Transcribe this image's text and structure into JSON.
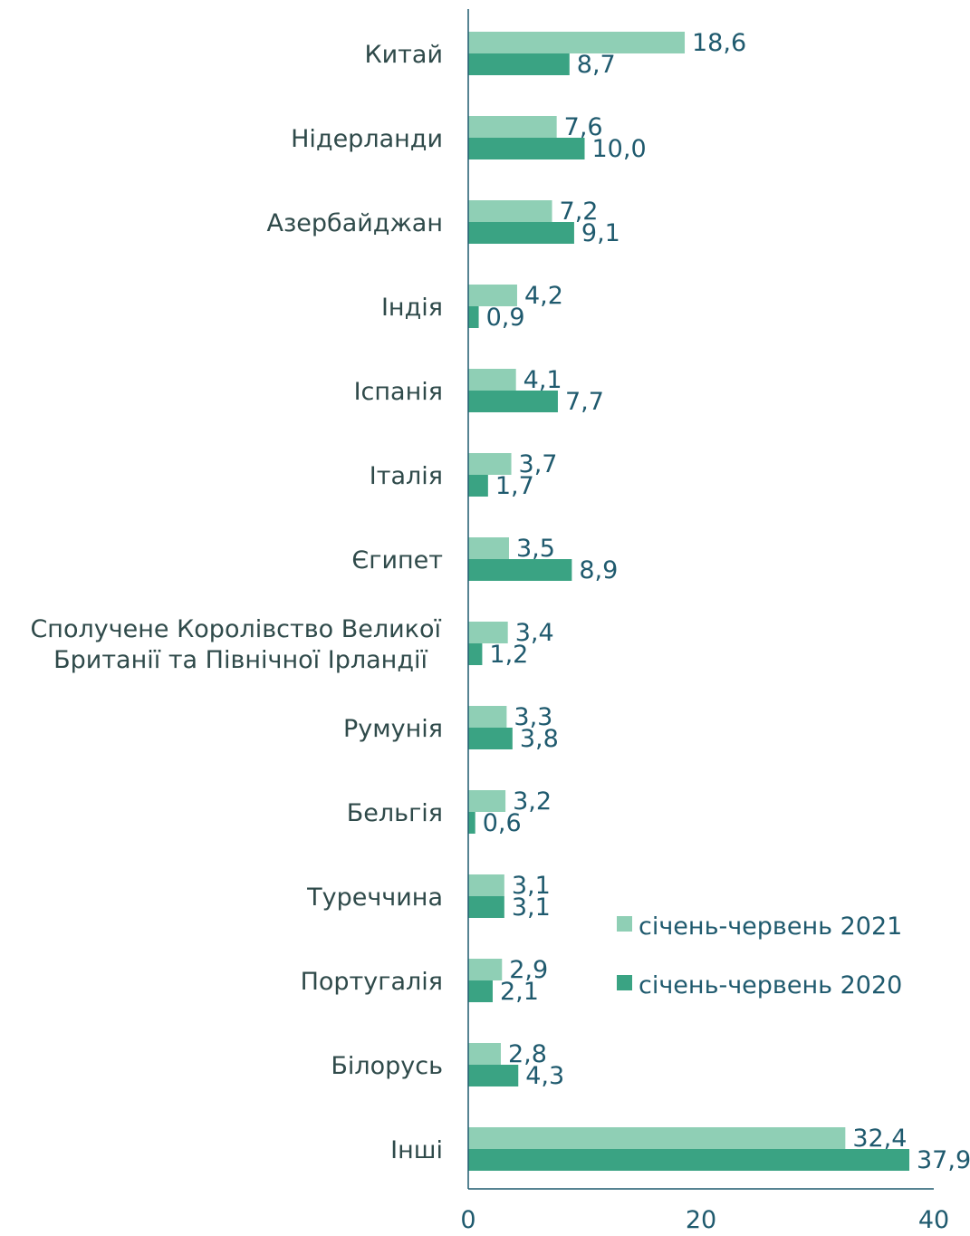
{
  "chart_data": {
    "type": "bar",
    "orientation": "horizontal",
    "categories": [
      [
        "Китай"
      ],
      [
        "Нідерланди"
      ],
      [
        "Азербайджан"
      ],
      [
        "Індія"
      ],
      [
        "Іспанія"
      ],
      [
        "Італія"
      ],
      [
        "Єгипет"
      ],
      [
        "Сполучене Королівство Великої",
        "Британії та Північної Ірландії"
      ],
      [
        "Румунія"
      ],
      [
        "Бельгія"
      ],
      [
        "Туреччина"
      ],
      [
        "Португалія"
      ],
      [
        "Білорусь"
      ],
      [
        "Інші"
      ]
    ],
    "series": [
      {
        "name": "січень-червень 2021",
        "color": "#8fcfb5",
        "values": [
          18.6,
          7.6,
          7.2,
          4.2,
          4.1,
          3.7,
          3.5,
          3.4,
          3.3,
          3.2,
          3.1,
          2.9,
          2.8,
          32.4
        ],
        "labels": [
          "18,6",
          "7,6",
          "7,2",
          "4,2",
          "4,1",
          "3,7",
          "3,5",
          "3,4",
          "3,3",
          "3,2",
          "3,1",
          "2,9",
          "2,8",
          "32,4"
        ]
      },
      {
        "name": "січень-червень 2020",
        "color": "#3aa383",
        "values": [
          8.7,
          10.0,
          9.1,
          0.9,
          7.7,
          1.7,
          8.9,
          1.2,
          3.8,
          0.6,
          3.1,
          2.1,
          4.3,
          37.9
        ],
        "labels": [
          "8,7",
          "10,0",
          "9,1",
          "0,9",
          "7,7",
          "1,7",
          "8,9",
          "1,2",
          "3,8",
          "0,6",
          "3,1",
          "2,1",
          "4,3",
          "37,9"
        ]
      }
    ],
    "x_ticks": [
      0,
      20,
      40
    ],
    "x_tick_labels": [
      "0",
      "20",
      "40"
    ],
    "xlim": [
      0,
      40
    ],
    "title": "",
    "xlabel": "",
    "ylabel": "",
    "grid": false,
    "legend_position": "bottom-right",
    "axis_color": "#1f5a6e"
  }
}
